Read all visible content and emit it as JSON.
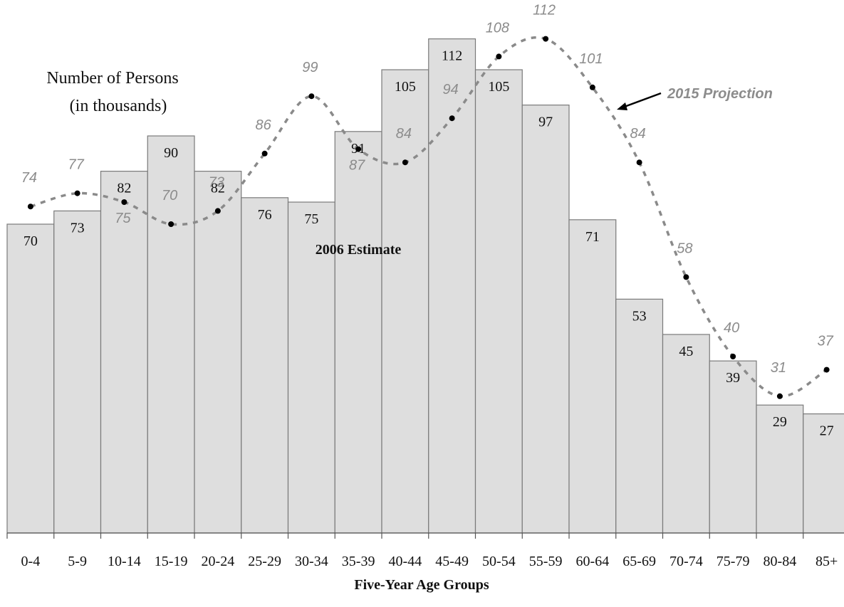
{
  "chart_data": {
    "type": "bar",
    "categories": [
      "0-4",
      "5-9",
      "10-14",
      "15-19",
      "20-24",
      "25-29",
      "30-34",
      "35-39",
      "40-44",
      "45-49",
      "50-54",
      "55-59",
      "60-64",
      "65-69",
      "70-74",
      "75-79",
      "80-84",
      "85+"
    ],
    "series": [
      {
        "name": "2006 Estimate",
        "type": "bar",
        "values": [
          70,
          73,
          82,
          90,
          82,
          76,
          75,
          91,
          105,
          112,
          105,
          97,
          71,
          53,
          45,
          39,
          29,
          27
        ]
      },
      {
        "name": "2015 Projection",
        "type": "line",
        "values": [
          74,
          77,
          75,
          70,
          73,
          86,
          99,
          87,
          84,
          94,
          108,
          112,
          101,
          84,
          58,
          40,
          31,
          37
        ]
      }
    ],
    "ylabel": "Number of Persons",
    "ylabel_sub": "(in thousands)",
    "xlabel": "Five-Year Age Groups",
    "ylim": [
      0,
      125
    ],
    "grid": false,
    "colors": {
      "bar_fill": "#dedede",
      "bar_stroke": "#7a7a7a",
      "projection": "#8c8c8c",
      "marker": "#000000"
    }
  }
}
